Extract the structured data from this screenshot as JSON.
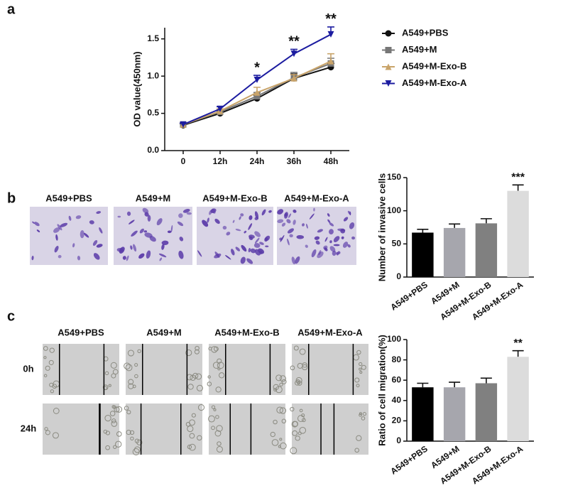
{
  "chart_data": [
    {
      "type": "line",
      "panel": "a",
      "y_label": "OD value(450nm)",
      "categories": [
        "0",
        "12h",
        "24h",
        "36h",
        "48h"
      ],
      "series": [
        {
          "name": "A549+PBS",
          "color": "#111111",
          "marker": "circle",
          "values": [
            0.34,
            0.5,
            0.7,
            0.97,
            1.12
          ],
          "errors": [
            0.02,
            0.02,
            0.04,
            0.06,
            0.05
          ]
        },
        {
          "name": "A549+M",
          "color": "#777777",
          "marker": "square",
          "values": [
            0.35,
            0.52,
            0.73,
            0.98,
            1.17
          ],
          "errors": [
            0.02,
            0.02,
            0.05,
            0.07,
            0.07
          ]
        },
        {
          "name": "A549+M-Exo-B",
          "color": "#c9a46a",
          "marker": "triangle-up",
          "values": [
            0.35,
            0.53,
            0.78,
            0.97,
            1.2
          ],
          "errors": [
            0.02,
            0.03,
            0.07,
            0.05,
            0.1
          ]
        },
        {
          "name": "A549+M-Exo-A",
          "color": "#1c1ca0",
          "marker": "triangle-down",
          "values": [
            0.35,
            0.56,
            0.95,
            1.3,
            1.56
          ],
          "errors": [
            0.02,
            0.03,
            0.06,
            0.06,
            0.1
          ]
        }
      ],
      "significance": [
        null,
        null,
        "*",
        "**",
        "**"
      ],
      "ylim": [
        0,
        1.65
      ],
      "yticks": [
        {
          "value": 0,
          "label": "0.0"
        },
        0.5,
        {
          "value": 1,
          "label": "1.0"
        },
        1.5
      ]
    },
    {
      "type": "bar",
      "panel": "b",
      "y_label": "Number of invasive cells",
      "categories": [
        "A549+PBS",
        "A549+M",
        "A549+M-Exo-B",
        "A549+M-Exo-A"
      ],
      "values": [
        67,
        74,
        81,
        130
      ],
      "errors": [
        5,
        6,
        7,
        9
      ],
      "colors": [
        "#000000",
        "#a6a6ad",
        "#808080",
        "#dcdcdc"
      ],
      "significance": [
        null,
        null,
        null,
        "***"
      ],
      "ylim": [
        0,
        150
      ],
      "yticks": [
        0,
        50,
        100,
        150
      ]
    },
    {
      "type": "bar",
      "panel": "c",
      "y_label": "Ratio of cell migration(%)",
      "categories": [
        "A549+PBS",
        "A549+M",
        "A549+M-Exo-B",
        "A549+M-Exo-A"
      ],
      "values": [
        53,
        53,
        57,
        83
      ],
      "errors": [
        4,
        5,
        5,
        6
      ],
      "colors": [
        "#000000",
        "#a6a6ad",
        "#808080",
        "#dcdcdc"
      ],
      "significance": [
        null,
        null,
        null,
        "**"
      ],
      "ylim": [
        0,
        100
      ],
      "yticks": [
        0,
        20,
        40,
        60,
        80,
        100
      ]
    }
  ],
  "micrographs": {
    "b": {
      "columns": [
        "A549+PBS",
        "A549+M",
        "A549+M-Exo-B",
        "A549+M-Exo-A"
      ]
    },
    "c": {
      "columns": [
        "A549+PBS",
        "A549+M",
        "A549+M-Exo-B",
        "A549+M-Exo-A"
      ],
      "rows": [
        "0h",
        "24h"
      ]
    }
  }
}
